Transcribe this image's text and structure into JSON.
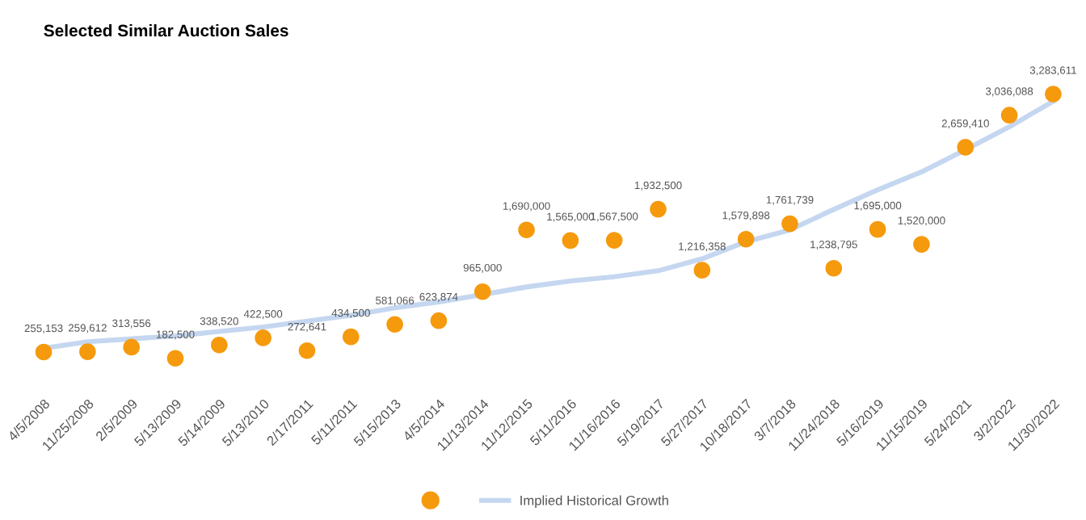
{
  "chart_data": {
    "type": "scatter",
    "title": "Selected Similar Auction Sales",
    "categories": [
      "4/5/2008",
      "11/25/2008",
      "2/5/2009",
      "5/13/2009",
      "5/14/2009",
      "5/13/2010",
      "2/17/2011",
      "5/11/2011",
      "5/15/2013",
      "4/5/2014",
      "11/13/2014",
      "11/12/2015",
      "5/11/2016",
      "11/16/2016",
      "5/19/2017",
      "5/27/2017",
      "10/18/2017",
      "3/7/2018",
      "11/24/2018",
      "5/16/2019",
      "11/15/2019",
      "5/24/2021",
      "3/2/2022",
      "11/30/2022"
    ],
    "series": [
      {
        "color": "#f59a0c",
        "marker": "circle",
        "values": [
          255153,
          259612,
          313556,
          182500,
          338520,
          422500,
          272641,
          434500,
          581066,
          623874,
          965000,
          1690000,
          1565000,
          1567500,
          1932500,
          1216358,
          1579898,
          1761739,
          1238795,
          1695000,
          1520000,
          2659410,
          3036088,
          3283611
        ],
        "value_labels": [
          "255,153",
          "259,612",
          "313,556",
          "182,500",
          "338,520",
          "422,500",
          "272,641",
          "434,500",
          "581,066",
          "623,874",
          "965,000",
          "1,690,000",
          "1,565,000",
          "1,567,500",
          "1,932,500",
          "1,216,358",
          "1,579,898",
          "1,761,739",
          "1,238,795",
          "1,695,000",
          "1,520,000",
          "2,659,410",
          "3,036,088",
          "3,283,611"
        ]
      },
      {
        "type": "line",
        "name": "Implied Historical Growth",
        "color": "#c5d7f0",
        "marker": "none",
        "values": [
          300000,
          376000,
          411000,
          445000,
          497000,
          550000,
          618000,
          688000,
          775000,
          843000,
          930000,
          1020000,
          1090000,
          1140000,
          1210000,
          1350000,
          1550000,
          1690000,
          1930000,
          2160000,
          2370000,
          2630000,
          2900000,
          3200000
        ]
      }
    ],
    "tick_labels": "x",
    "legend": "bottom",
    "grid": false
  }
}
